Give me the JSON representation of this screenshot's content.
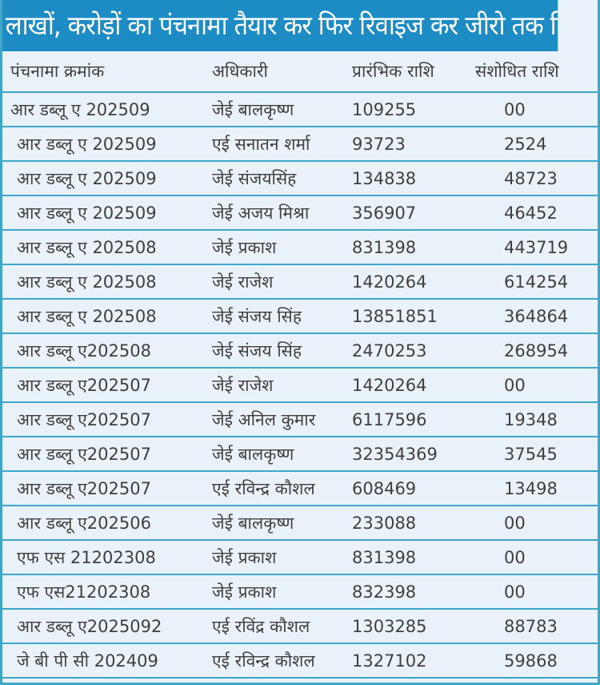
{
  "title": "लाखों, करोड़ों का पंचनामा तैयार कर फिर रिवाइज कर जीरो तक किया",
  "colors": {
    "title_bg": "#1d8bc4",
    "row_line": "#3ea6c9",
    "table_bg": "#eaf2f9"
  },
  "headers": [
    "पंचनामा क्रमांक",
    "अधिकारी",
    "प्रारंभिक राशि",
    "संशोधित राशि"
  ],
  "rows": [
    [
      "आर डब्लू ए 202509",
      "जेई बालकृष्ण",
      "109255",
      "00"
    ],
    [
      "आर डब्लू ए 202509",
      "एई सनातन शर्मा",
      "93723",
      "2524"
    ],
    [
      "आर डब्लू ए 202509",
      "जेई संजयसिंह",
      "134838",
      "48723"
    ],
    [
      "आर डब्लू ए 202509",
      "जेई अजय मिश्रा",
      "356907",
      "46452"
    ],
    [
      "आर डब्लू ए 202508",
      "जेई प्रकाश",
      "831398",
      "443719"
    ],
    [
      "आर डब्लू ए 202508",
      "जेई राजेश",
      "1420264",
      "614254"
    ],
    [
      "आर डब्लू ए 202508",
      "जेई संजय सिंह",
      "13851851",
      "364864"
    ],
    [
      "आर डब्लू ए202508",
      "जेई संजय सिंह",
      "2470253",
      "268954"
    ],
    [
      "आर डब्लू ए202507",
      "जेई राजेश",
      "1420264",
      "00"
    ],
    [
      "आर डब्लू ए202507",
      "जेई अनिल कुमार",
      "6117596",
      "19348"
    ],
    [
      "आर डब्लू ए202507",
      "जेई बालकृष्ण",
      "32354369",
      "37545"
    ],
    [
      "आर डब्लू ए202507",
      "एई रविन्द्र कौशल",
      "608469",
      "13498"
    ],
    [
      "आर डब्लू ए202506",
      "जेई बालकृष्ण",
      "233088",
      "00"
    ],
    [
      "एफ एस 21202308",
      "जेई प्रकाश",
      "831398",
      "00"
    ],
    [
      "एफ एस21202308",
      "जेई प्रकाश",
      "832398",
      "00"
    ],
    [
      "आर डब्लू ए2025092",
      "एई रविंद्र कौशल",
      "1303285",
      "88783"
    ],
    [
      "जे बी पी सी 202409",
      "एई रविन्द्र कौशल",
      "1327102",
      "59868"
    ]
  ]
}
